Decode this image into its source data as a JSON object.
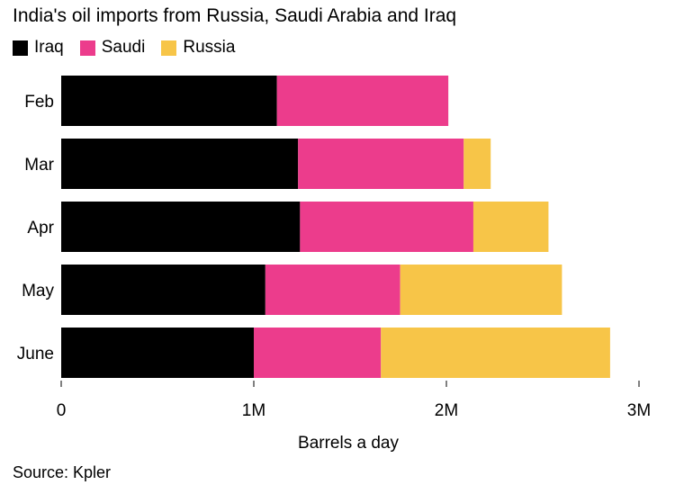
{
  "chart_data": {
    "type": "bar",
    "orientation": "horizontal",
    "stacked": true,
    "title": "India's oil imports from Russia, Saudi Arabia and Iraq",
    "categories": [
      "Feb",
      "Mar",
      "Apr",
      "May",
      "June"
    ],
    "series": [
      {
        "name": "Iraq",
        "color": "#000000",
        "values": [
          1120000,
          1230000,
          1240000,
          1060000,
          1000000
        ]
      },
      {
        "name": "Saudi",
        "color": "#ec3c8c",
        "values": [
          890000,
          860000,
          900000,
          700000,
          660000
        ]
      },
      {
        "name": "Russia",
        "color": "#f7c548",
        "values": [
          0,
          140000,
          390000,
          840000,
          1190000
        ]
      }
    ],
    "xlabel": "Barrels a day",
    "xlim": [
      0,
      3000000
    ],
    "xticks": [
      0,
      1000000,
      2000000,
      3000000
    ],
    "xtick_labels": [
      "0",
      "1M",
      "2M",
      "3M"
    ],
    "legend_position": "top-left",
    "grid": false
  },
  "source": "Source: Kpler"
}
